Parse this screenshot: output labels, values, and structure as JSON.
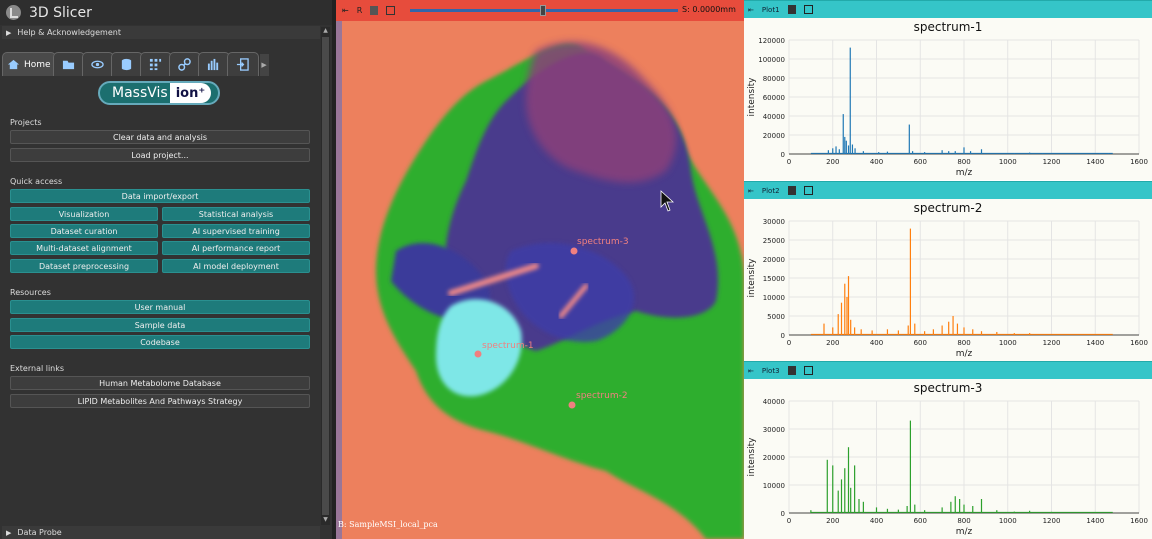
{
  "app": {
    "title": "3D Slicer"
  },
  "panels": {
    "help": "Help & Acknowledgement",
    "probe": "Data Probe"
  },
  "tabs": [
    {
      "label": "Home",
      "icon": "home-icon"
    },
    {
      "icon": "folder-icon"
    },
    {
      "icon": "eye-icon"
    },
    {
      "icon": "database-icon"
    },
    {
      "icon": "grid-icon"
    },
    {
      "icon": "link-icon"
    },
    {
      "icon": "bar-chart-icon"
    },
    {
      "icon": "export-icon"
    }
  ],
  "logo": {
    "part1": "MassVis",
    "part2": "ion⁺"
  },
  "projects": {
    "heading": "Projects",
    "clear": "Clear data and analysis",
    "load": "Load project..."
  },
  "quick": {
    "heading": "Quick access",
    "import": "Data import/export",
    "visualization": "Visualization",
    "stats": "Statistical analysis",
    "curation": "Dataset curation",
    "supervised": "AI supervised training",
    "alignment": "Multi-dataset alignment",
    "performance": "AI performance report",
    "preprocessing": "Dataset preprocessing",
    "deployment": "AI model deployment"
  },
  "resources": {
    "heading": "Resources",
    "manual": "User manual",
    "sample": "Sample data",
    "codebase": "Codebase"
  },
  "links": {
    "heading": "External links",
    "hmdb": "Human Metabolome Database",
    "lipid": "LIPID Metabolites And Pathways Strategy"
  },
  "view": {
    "pin": "⇤",
    "label": "R",
    "slice_offset": "S: 0.0000mm",
    "volume": "B: SampleMSI_local_pca",
    "markers": [
      "spectrum-3",
      "spectrum-1",
      "spectrum-2"
    ]
  },
  "plots": [
    {
      "bar": "Plot1",
      "title": "spectrum-1"
    },
    {
      "bar": "Plot2",
      "title": "spectrum-2"
    },
    {
      "bar": "Plot3",
      "title": "spectrum-3"
    }
  ],
  "chart_data": [
    {
      "type": "bar",
      "title": "spectrum-1",
      "xlabel": "m/z",
      "ylabel": "intensity",
      "xlim": [
        0,
        1600
      ],
      "ylim": [
        0,
        120000
      ],
      "xticks": [
        0,
        200,
        400,
        600,
        800,
        1000,
        1200,
        1400,
        1600
      ],
      "yticks": [
        0,
        20000,
        40000,
        60000,
        80000,
        100000,
        120000
      ],
      "color": "#1f77b4",
      "peaks": [
        [
          180,
          4000
        ],
        [
          200,
          6000
        ],
        [
          215,
          8000
        ],
        [
          230,
          5000
        ],
        [
          248,
          42000
        ],
        [
          255,
          18000
        ],
        [
          262,
          14000
        ],
        [
          272,
          9000
        ],
        [
          280,
          112000
        ],
        [
          290,
          10000
        ],
        [
          302,
          6000
        ],
        [
          340,
          3000
        ],
        [
          410,
          2000
        ],
        [
          450,
          2500
        ],
        [
          550,
          31000
        ],
        [
          565,
          3000
        ],
        [
          620,
          2000
        ],
        [
          700,
          4000
        ],
        [
          730,
          3000
        ],
        [
          760,
          3000
        ],
        [
          800,
          7000
        ],
        [
          830,
          3000
        ],
        [
          880,
          5000
        ],
        [
          1030,
          1000
        ],
        [
          1100,
          1500
        ],
        [
          1160,
          1000
        ],
        [
          1420,
          600
        ],
        [
          1460,
          500
        ]
      ]
    },
    {
      "type": "bar",
      "title": "spectrum-2",
      "xlabel": "m/z",
      "ylabel": "intensity",
      "xlim": [
        0,
        1600
      ],
      "ylim": [
        0,
        30000
      ],
      "xticks": [
        0,
        200,
        400,
        600,
        800,
        1000,
        1200,
        1400,
        1600
      ],
      "yticks": [
        0,
        5000,
        10000,
        15000,
        20000,
        25000,
        30000
      ],
      "color": "#ff7f0e",
      "peaks": [
        [
          160,
          3000
        ],
        [
          200,
          2000
        ],
        [
          225,
          5500
        ],
        [
          240,
          8500
        ],
        [
          255,
          13500
        ],
        [
          265,
          10000
        ],
        [
          272,
          15500
        ],
        [
          282,
          4000
        ],
        [
          300,
          2000
        ],
        [
          330,
          1500
        ],
        [
          380,
          1200
        ],
        [
          450,
          1500
        ],
        [
          500,
          1200
        ],
        [
          545,
          2500
        ],
        [
          555,
          28000
        ],
        [
          575,
          3000
        ],
        [
          620,
          1000
        ],
        [
          660,
          1500
        ],
        [
          700,
          2500
        ],
        [
          730,
          3500
        ],
        [
          750,
          5000
        ],
        [
          770,
          3000
        ],
        [
          800,
          2000
        ],
        [
          840,
          1500
        ],
        [
          880,
          1000
        ],
        [
          950,
          800
        ],
        [
          1030,
          500
        ],
        [
          1100,
          500
        ]
      ]
    },
    {
      "type": "bar",
      "title": "spectrum-3",
      "xlabel": "m/z",
      "ylabel": "intensity",
      "xlim": [
        0,
        1600
      ],
      "ylim": [
        0,
        40000
      ],
      "xticks": [
        0,
        200,
        400,
        600,
        800,
        1000,
        1200,
        1400,
        1600
      ],
      "yticks": [
        0,
        10000,
        20000,
        30000,
        40000
      ],
      "color": "#2ca02c",
      "peaks": [
        [
          100,
          1000
        ],
        [
          175,
          19000
        ],
        [
          200,
          17000
        ],
        [
          225,
          8000
        ],
        [
          240,
          12000
        ],
        [
          255,
          16000
        ],
        [
          272,
          23500
        ],
        [
          282,
          9000
        ],
        [
          300,
          17000
        ],
        [
          320,
          5000
        ],
        [
          340,
          4000
        ],
        [
          400,
          2000
        ],
        [
          450,
          1500
        ],
        [
          500,
          1200
        ],
        [
          540,
          2500
        ],
        [
          555,
          33000
        ],
        [
          575,
          3000
        ],
        [
          620,
          1000
        ],
        [
          700,
          2000
        ],
        [
          740,
          4000
        ],
        [
          760,
          6000
        ],
        [
          780,
          5000
        ],
        [
          800,
          3000
        ],
        [
          840,
          2500
        ],
        [
          880,
          5000
        ],
        [
          950,
          1000
        ],
        [
          1030,
          500
        ],
        [
          1100,
          800
        ],
        [
          1200,
          400
        ],
        [
          1400,
          300
        ]
      ]
    }
  ]
}
